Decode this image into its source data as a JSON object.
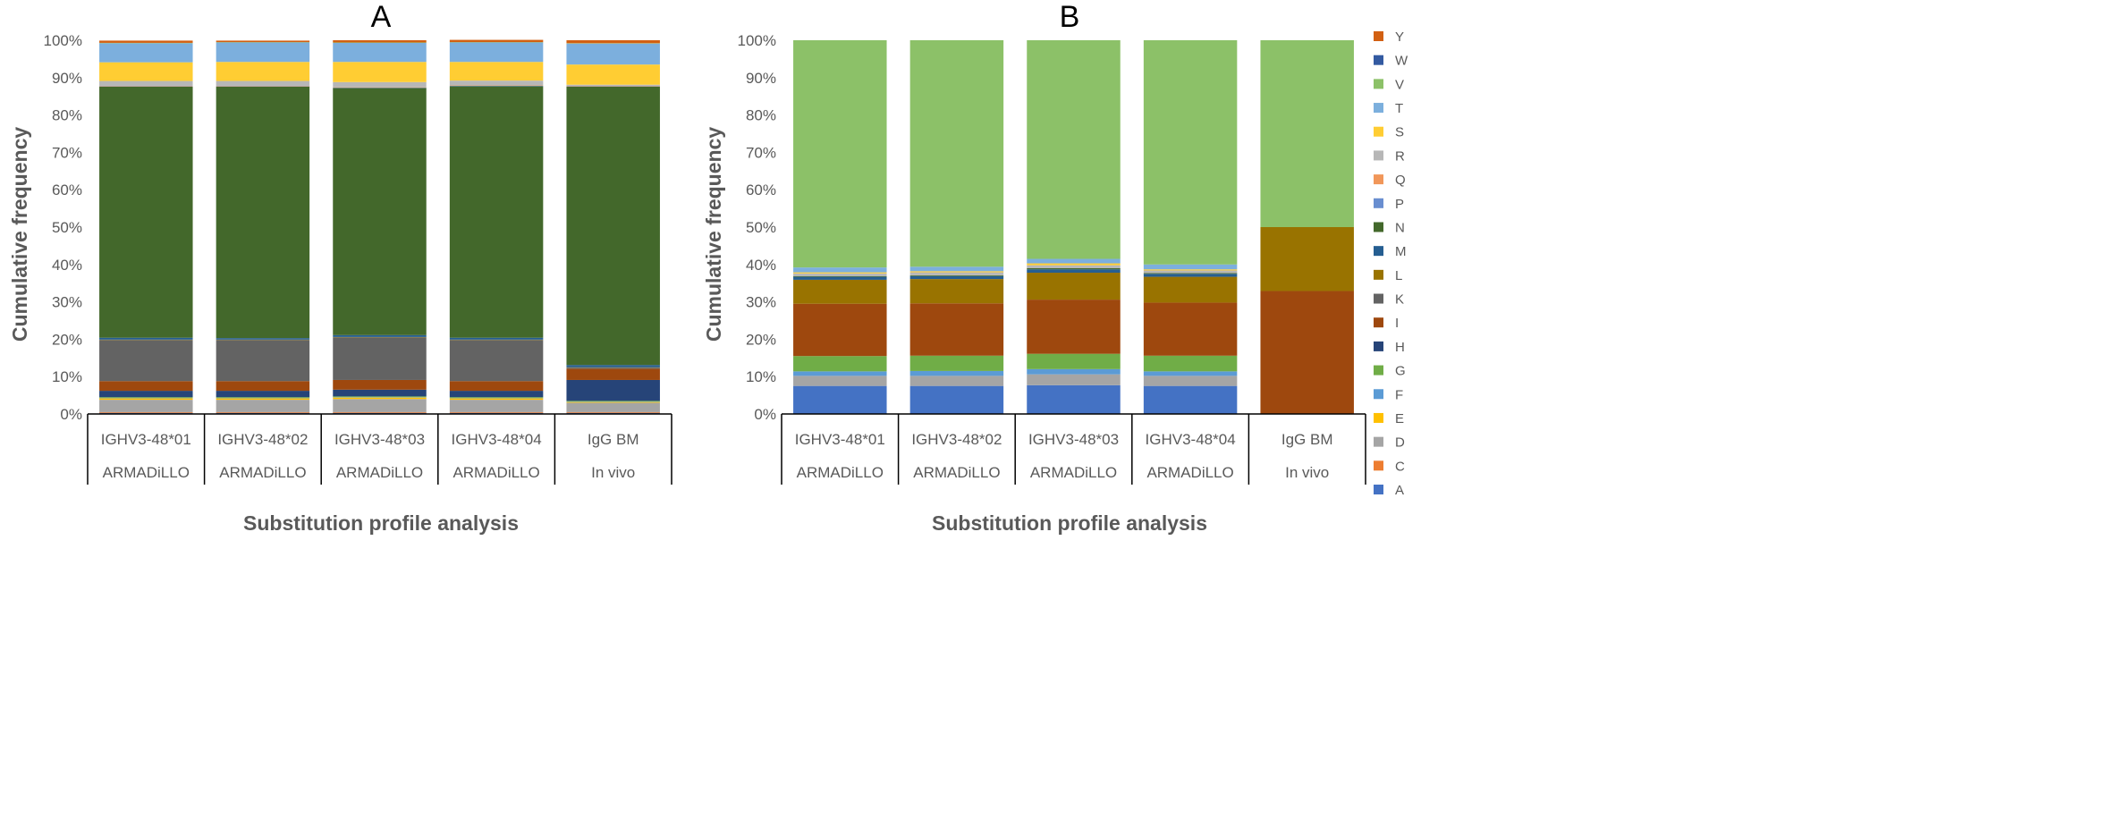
{
  "colors": {
    "A": "#4472c4",
    "C": "#ed7d31",
    "D": "#a5a5a5",
    "E": "#ffc000",
    "F": "#5b9bd5",
    "G": "#70ad47",
    "H": "#264478",
    "I": "#9e480e",
    "K": "#636363",
    "L": "#997300",
    "M": "#255e91",
    "N": "#43682b",
    "P": "#698ed0",
    "Q": "#f1975a",
    "R": "#b7b7b7",
    "S": "#ffcd33",
    "T": "#7cafdd",
    "V": "#8cc168",
    "W": "#335aa1",
    "Y": "#d26012"
  },
  "chart_data": [
    {
      "type": "bar",
      "stacked": true,
      "title": "A",
      "xlabel": "Substitution profile analysis",
      "ylabel": "Cumulative frequency",
      "ylim": [
        0,
        100
      ],
      "yticks": [
        "0%",
        "10%",
        "20%",
        "30%",
        "40%",
        "50%",
        "60%",
        "70%",
        "80%",
        "90%",
        "100%"
      ],
      "categories": [
        {
          "top": "IGHV3-48*01",
          "bottom": "ARMADiLLO"
        },
        {
          "top": "IGHV3-48*02",
          "bottom": "ARMADiLLO"
        },
        {
          "top": "IGHV3-48*03",
          "bottom": "ARMADiLLO"
        },
        {
          "top": "IGHV3-48*04",
          "bottom": "ARMADiLLO"
        },
        {
          "top": "IgG BM",
          "bottom": "In vivo"
        }
      ],
      "series": [
        {
          "name": "A",
          "values": [
            0.3,
            0.3,
            0.3,
            0.3,
            0.3
          ]
        },
        {
          "name": "C",
          "values": [
            0.2,
            0.2,
            0.2,
            0.2,
            0.2
          ]
        },
        {
          "name": "D",
          "values": [
            3.3,
            3.3,
            3.5,
            3.3,
            2.5
          ]
        },
        {
          "name": "E",
          "values": [
            0.4,
            0.4,
            0.4,
            0.4,
            0.2
          ]
        },
        {
          "name": "F",
          "values": [
            0.1,
            0.1,
            0.1,
            0.1,
            0.1
          ]
        },
        {
          "name": "G",
          "values": [
            0.2,
            0.2,
            0.2,
            0.2,
            0.2
          ]
        },
        {
          "name": "H",
          "values": [
            1.7,
            1.7,
            1.8,
            1.7,
            5.6
          ]
        },
        {
          "name": "I",
          "values": [
            2.6,
            2.6,
            2.6,
            2.6,
            3.0
          ]
        },
        {
          "name": "K",
          "values": [
            11.0,
            11.0,
            11.4,
            11.0,
            0.3
          ]
        },
        {
          "name": "L",
          "values": [
            0.1,
            0.1,
            0.1,
            0.1,
            0.1
          ]
        },
        {
          "name": "M",
          "values": [
            0.5,
            0.4,
            0.5,
            0.5,
            0.6
          ]
        },
        {
          "name": "N",
          "values": [
            67.2,
            67.3,
            66.1,
            67.3,
            74.5
          ]
        },
        {
          "name": "P",
          "values": [
            0.1,
            0.1,
            0.1,
            0.1,
            0.1
          ]
        },
        {
          "name": "Q",
          "values": [
            0.1,
            0.1,
            0.1,
            0.1,
            0.1
          ]
        },
        {
          "name": "R",
          "values": [
            1.3,
            1.3,
            1.4,
            1.3,
            0.3
          ]
        },
        {
          "name": "S",
          "values": [
            5.0,
            5.1,
            5.4,
            5.0,
            5.4
          ]
        },
        {
          "name": "T",
          "values": [
            5.1,
            5.2,
            5.1,
            5.2,
            5.6
          ]
        },
        {
          "name": "V",
          "values": [
            0.1,
            0.1,
            0.1,
            0.1,
            0.1
          ]
        },
        {
          "name": "W",
          "values": [
            0.0,
            0.0,
            0.0,
            0.0,
            0.0
          ]
        },
        {
          "name": "Y",
          "values": [
            0.6,
            0.4,
            0.6,
            0.6,
            0.8
          ]
        }
      ]
    },
    {
      "type": "bar",
      "stacked": true,
      "title": "B",
      "xlabel": "Substitution profile analysis",
      "ylabel": "Cumulative frequency",
      "ylim": [
        0,
        100
      ],
      "yticks": [
        "0%",
        "10%",
        "20%",
        "30%",
        "40%",
        "50%",
        "60%",
        "70%",
        "80%",
        "90%",
        "100%"
      ],
      "legend_position": "right",
      "categories": [
        {
          "top": "IGHV3-48*01",
          "bottom": "ARMADiLLO"
        },
        {
          "top": "IGHV3-48*02",
          "bottom": "ARMADiLLO"
        },
        {
          "top": "IGHV3-48*03",
          "bottom": "ARMADiLLO"
        },
        {
          "top": "IGHV3-48*04",
          "bottom": "ARMADiLLO"
        },
        {
          "top": "IgG BM",
          "bottom": "In vivo"
        }
      ],
      "legend": [
        "Y",
        "W",
        "V",
        "T",
        "S",
        "R",
        "Q",
        "P",
        "N",
        "M",
        "L",
        "K",
        "I",
        "H",
        "G",
        "F",
        "E",
        "D",
        "C",
        "A"
      ],
      "series": [
        {
          "name": "A",
          "values": [
            7.5,
            7.5,
            7.7,
            7.5,
            0
          ]
        },
        {
          "name": "C",
          "values": [
            0,
            0,
            0,
            0,
            0
          ]
        },
        {
          "name": "D",
          "values": [
            2.7,
            2.7,
            2.9,
            2.7,
            0
          ]
        },
        {
          "name": "E",
          "values": [
            0,
            0,
            0,
            0,
            0
          ]
        },
        {
          "name": "F",
          "values": [
            1.2,
            1.3,
            1.4,
            1.2,
            0
          ]
        },
        {
          "name": "G",
          "values": [
            4.1,
            4.1,
            4.1,
            4.2,
            0
          ]
        },
        {
          "name": "H",
          "values": [
            0,
            0,
            0,
            0,
            0
          ]
        },
        {
          "name": "I",
          "values": [
            14.0,
            14.0,
            14.5,
            14.2,
            32.9
          ]
        },
        {
          "name": "K",
          "values": [
            0,
            0,
            0,
            0,
            0
          ]
        },
        {
          "name": "L",
          "values": [
            6.4,
            6.5,
            7.2,
            6.9,
            17.1
          ]
        },
        {
          "name": "M",
          "values": [
            0.8,
            0.8,
            0.9,
            0.8,
            0
          ]
        },
        {
          "name": "N",
          "values": [
            0.2,
            0.2,
            0.3,
            0.2,
            0
          ]
        },
        {
          "name": "P",
          "values": [
            0,
            0,
            0,
            0,
            0
          ]
        },
        {
          "name": "Q",
          "values": [
            0,
            0,
            0,
            0,
            0
          ]
        },
        {
          "name": "R",
          "values": [
            0.7,
            0.8,
            0.8,
            0.7,
            0
          ]
        },
        {
          "name": "S",
          "values": [
            0.3,
            0.3,
            0.5,
            0.3,
            0
          ]
        },
        {
          "name": "T",
          "values": [
            1.3,
            1.2,
            1.2,
            1.3,
            0
          ]
        },
        {
          "name": "V",
          "values": [
            60.8,
            60.6,
            58.5,
            60.0,
            50.0
          ]
        },
        {
          "name": "W",
          "values": [
            0,
            0,
            0,
            0,
            0
          ]
        },
        {
          "name": "Y",
          "values": [
            0,
            0,
            0,
            0,
            0
          ]
        }
      ]
    }
  ]
}
